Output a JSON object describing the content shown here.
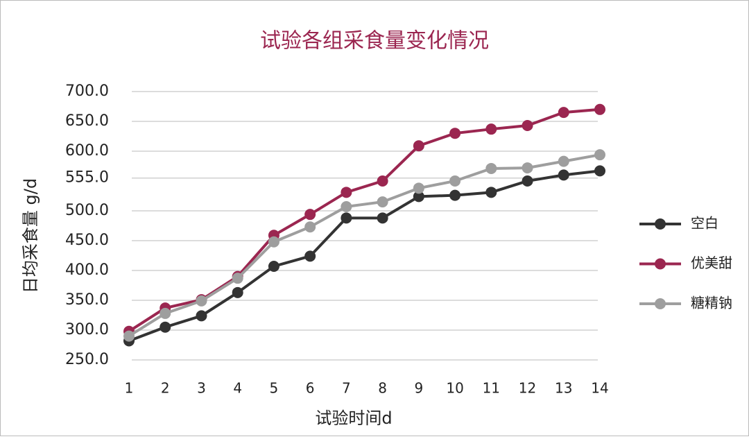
{
  "chart_data": {
    "type": "line",
    "title": "试验各组采食量变化情况",
    "x_label": "试验时间d",
    "y_label": "日均采食量 g/d",
    "x": [
      1,
      2,
      3,
      4,
      5,
      6,
      7,
      8,
      9,
      10,
      11,
      12,
      13,
      14
    ],
    "xlim": [
      1,
      14
    ],
    "xticks": [
      1,
      2,
      3,
      4,
      5,
      6,
      7,
      8,
      9,
      10,
      11,
      12,
      13,
      14
    ],
    "ylim": [
      250,
      700
    ],
    "yticks": [
      {
        "value": 250,
        "label": "250.0"
      },
      {
        "value": 300,
        "label": "300.0"
      },
      {
        "value": 350,
        "label": "350.0"
      },
      {
        "value": 400,
        "label": "400.0"
      },
      {
        "value": 450,
        "label": "450.0"
      },
      {
        "value": 500,
        "label": "500.0"
      },
      {
        "value": 555,
        "label": "555.0"
      },
      {
        "value": 600,
        "label": "600.0"
      },
      {
        "value": 650,
        "label": "650.0"
      },
      {
        "value": 700,
        "label": "700.0"
      }
    ],
    "grid": true,
    "legend": "right",
    "series": [
      {
        "name": "空白",
        "color": "#333333",
        "values": [
          282,
          305,
          324,
          363,
          407,
          424,
          488,
          488,
          524,
          526,
          531,
          550,
          560,
          567
        ]
      },
      {
        "name": "优美甜",
        "color": "#9b2650",
        "values": [
          298,
          337,
          351,
          390,
          459,
          494,
          531,
          550,
          609,
          630,
          637,
          643,
          665,
          670
        ]
      },
      {
        "name": "糖精钠",
        "color": "#9e9e9e",
        "values": [
          290,
          328,
          349,
          387,
          448,
          473,
          507,
          515,
          538,
          550,
          571,
          572,
          583,
          594
        ]
      }
    ]
  }
}
